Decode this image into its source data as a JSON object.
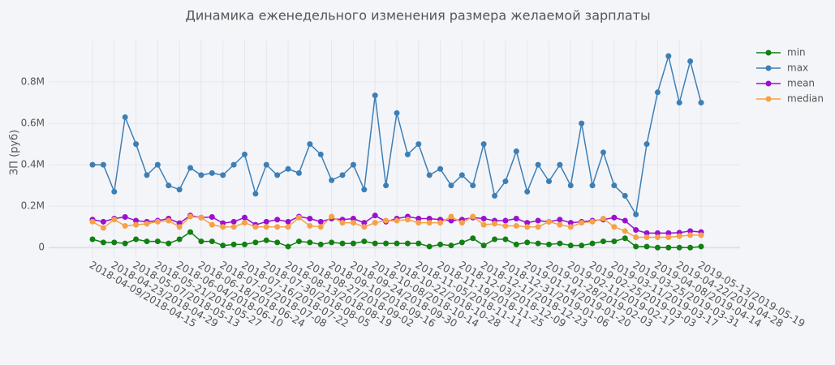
{
  "chart_data": {
    "type": "line",
    "title": "Динамика еженедельного изменения размера желаемой зарплаты",
    "y_label": "ЗП (руб)",
    "categories": [
      "2018-04-09/2018-04-15",
      null,
      "2018-04-23/2018-04-29",
      null,
      "2018-05-07/2018-05-13",
      null,
      "2018-05-21/2018-05-27",
      null,
      "2018-06-04/2018-06-10",
      null,
      "2018-06-18/2018-06-24",
      null,
      "2018-07-02/2018-07-08",
      null,
      "2018-07-16/2018-07-22",
      null,
      "2018-07-30/2018-08-05",
      null,
      "2018-08-13/2018-08-19",
      null,
      "2018-08-27/2018-09-02",
      null,
      "2018-09-10/2018-09-16",
      null,
      "2018-09-24/2018-09-30",
      null,
      "2018-10-08/2018-10-14",
      null,
      "2018-10-22/2018-10-28",
      null,
      "2018-11-05/2018-11-11",
      null,
      "2018-11-19/2018-11-25",
      null,
      "2018-12-03/2018-12-09",
      null,
      "2018-12-17/2018-12-23",
      null,
      "2018-12-31/2019-01-06",
      null,
      "2019-01-14/2019-01-20",
      null,
      "2019-01-28/2019-02-03",
      null,
      "2019-02-11/2019-02-17",
      null,
      "2019-02-25/2019-03-03",
      null,
      "2019-03-11/2019-03-17",
      null,
      "2019-03-25/2019-03-31",
      null,
      "2019-04-08/2019-04-14",
      null,
      "2019-04-22/2019-04-28",
      null,
      "2019-05-13/2019-05-19"
    ],
    "series": [
      {
        "name": "min",
        "color": "#118011",
        "values": [
          40000,
          25000,
          25000,
          20000,
          40000,
          30000,
          30000,
          20000,
          40000,
          75000,
          30000,
          30000,
          10000,
          15000,
          15000,
          25000,
          35000,
          25000,
          5000,
          30000,
          25000,
          15000,
          25000,
          20000,
          20000,
          30000,
          20000,
          20000,
          20000,
          20000,
          20000,
          5000,
          15000,
          10000,
          25000,
          45000,
          10000,
          40000,
          40000,
          15000,
          25000,
          20000,
          15000,
          20000,
          10000,
          10000,
          20000,
          30000,
          30000,
          45000,
          5000,
          5000,
          0,
          0,
          0,
          0,
          5000
        ]
      },
      {
        "name": "max",
        "color": "#3d7fb5",
        "values": [
          400000,
          400000,
          270000,
          630000,
          500000,
          350000,
          400000,
          300000,
          280000,
          385000,
          350000,
          360000,
          350000,
          400000,
          450000,
          260000,
          400000,
          350000,
          380000,
          360000,
          500000,
          450000,
          325000,
          350000,
          400000,
          280000,
          735000,
          300000,
          650000,
          450000,
          500000,
          350000,
          380000,
          300000,
          350000,
          300000,
          500000,
          250000,
          320000,
          465000,
          270000,
          400000,
          320000,
          400000,
          300000,
          600000,
          300000,
          460000,
          300000,
          250000,
          160000,
          500000,
          750000,
          925000,
          700000,
          900000,
          700000
        ]
      },
      {
        "name": "mean",
        "color": "#9a0fd1",
        "values": [
          135000,
          125000,
          140000,
          148000,
          130000,
          125000,
          130000,
          140000,
          118000,
          155000,
          145000,
          148000,
          118000,
          125000,
          145000,
          110000,
          125000,
          135000,
          125000,
          150000,
          140000,
          125000,
          140000,
          135000,
          140000,
          120000,
          155000,
          125000,
          140000,
          150000,
          140000,
          140000,
          135000,
          130000,
          135000,
          145000,
          140000,
          130000,
          130000,
          140000,
          120000,
          130000,
          125000,
          135000,
          120000,
          125000,
          130000,
          135000,
          145000,
          130000,
          85000,
          70000,
          70000,
          70000,
          72000,
          80000,
          75000
        ]
      },
      {
        "name": "median",
        "color": "#f7a146",
        "values": [
          125000,
          95000,
          135000,
          105000,
          110000,
          115000,
          125000,
          130000,
          100000,
          150000,
          145000,
          110000,
          100000,
          100000,
          120000,
          100000,
          100000,
          100000,
          100000,
          145000,
          105000,
          100000,
          150000,
          120000,
          120000,
          100000,
          120000,
          130000,
          130000,
          135000,
          120000,
          120000,
          120000,
          150000,
          120000,
          150000,
          110000,
          115000,
          105000,
          105000,
          100000,
          100000,
          125000,
          110000,
          100000,
          120000,
          125000,
          140000,
          100000,
          80000,
          50000,
          50000,
          50000,
          50000,
          55000,
          60000,
          60000
        ]
      }
    ],
    "ylim": [
      -50000,
      1000000
    ],
    "yticks": [
      0,
      {
        "value": 200000,
        "label": "0.2M"
      },
      {
        "value": 400000,
        "label": "0.4M"
      },
      {
        "value": 600000,
        "label": "0.6M"
      },
      {
        "value": 800000,
        "label": "0.8M"
      }
    ],
    "grid": true,
    "legend": "top-right"
  }
}
